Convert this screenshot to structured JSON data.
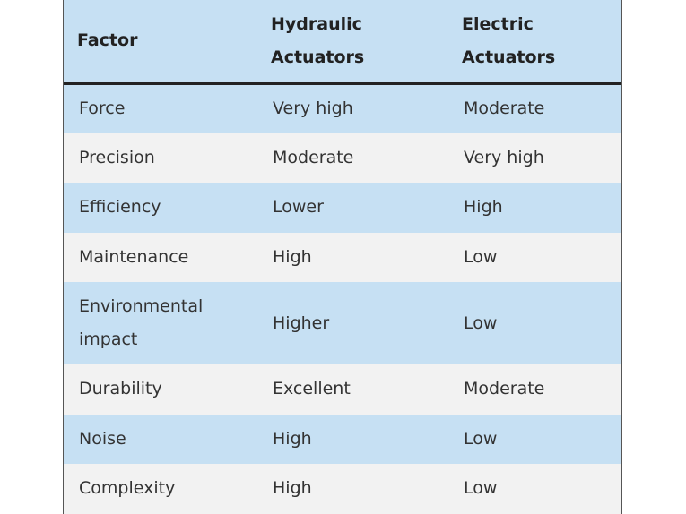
{
  "table": {
    "headers": [
      "Factor",
      "Hydraulic Actuators",
      "Electric Actuators"
    ],
    "rows": [
      [
        "Force",
        "Very high",
        "Moderate"
      ],
      [
        "Precision",
        "Moderate",
        "Very high"
      ],
      [
        "Efficiency",
        "Lower",
        "High"
      ],
      [
        "Maintenance",
        "High",
        "Low"
      ],
      [
        "Environmental impact",
        "Higher",
        "Low"
      ],
      [
        "Durability",
        "Excellent",
        "Moderate"
      ],
      [
        "Noise",
        "High",
        "Low"
      ],
      [
        "Complexity",
        "High",
        "Low"
      ]
    ]
  },
  "colors": {
    "header_bg": "#c6e0f3",
    "row_alt_bg": "#f2f2f2",
    "header_rule": "#222222"
  }
}
